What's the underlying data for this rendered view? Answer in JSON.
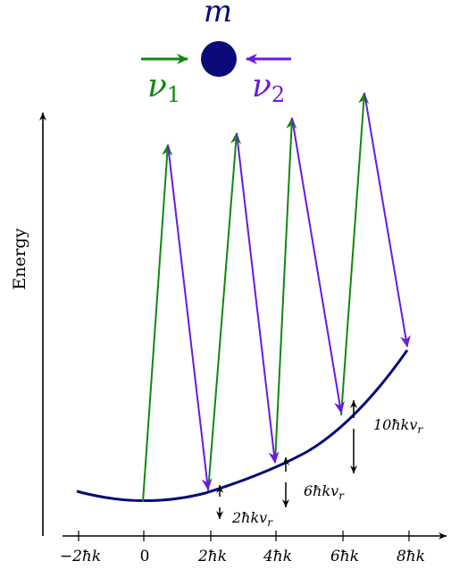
{
  "title_mass": "m",
  "beam_labels": {
    "nu1": "ν",
    "nu1_sub": "1",
    "nu2": "ν",
    "nu2_sub": "2"
  },
  "y_axis_label": "Energy",
  "x_ticks": [
    "−2ħk",
    "0",
    "2ħk",
    "4ħk",
    "6ħk",
    "8ħk"
  ],
  "energy_gaps": [
    "2ħkv",
    "6ħkv",
    "10ħkv"
  ],
  "energy_gap_subscript": "r",
  "colors": {
    "mass": "#0a0a7a",
    "nu1": "#118811",
    "nu2": "#6a1ae0",
    "parabola": "#0a0a7a",
    "axis": "#000000"
  }
}
